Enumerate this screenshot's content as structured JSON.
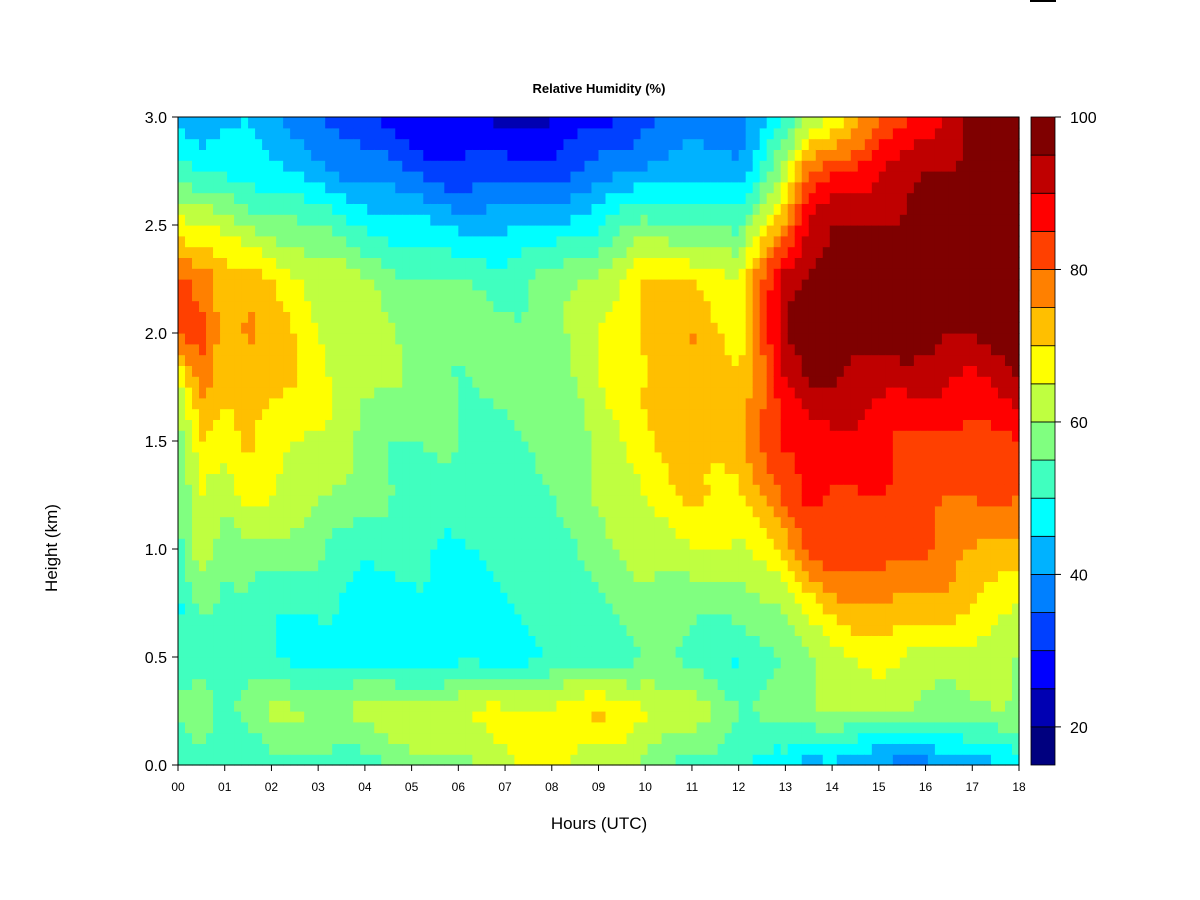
{
  "chart_data": {
    "type": "heatmap",
    "title": "Relative Humidity (%)",
    "xlabel": "Hours (UTC)",
    "ylabel": "Height (km)",
    "xlim": [
      0,
      18
    ],
    "ylim": [
      0.0,
      3.0
    ],
    "x_ticks": [
      "00",
      "01",
      "02",
      "03",
      "04",
      "05",
      "06",
      "07",
      "08",
      "09",
      "10",
      "11",
      "12",
      "13",
      "14",
      "15",
      "16",
      "17",
      "18"
    ],
    "y_ticks": [
      "0.0",
      "0.5",
      "1.0",
      "1.5",
      "2.0",
      "2.5",
      "3.0"
    ],
    "colorbar": {
      "range": [
        15,
        100
      ],
      "step": 5,
      "ticks": [
        "20",
        "40",
        "60",
        "80",
        "100"
      ],
      "colors": [
        "#00007f",
        "#0000b2",
        "#0000ff",
        "#0040ff",
        "#0080ff",
        "#00b2ff",
        "#00ffff",
        "#40ffbf",
        "#80ff80",
        "#bfff40",
        "#ffff00",
        "#ffbf00",
        "#ff8000",
        "#ff4000",
        "#ff0000",
        "#bf0000",
        "#7f0000"
      ]
    },
    "hour_columns": [
      0,
      0.5,
      1,
      1.5,
      2,
      3,
      4,
      5,
      6,
      7,
      8,
      9,
      10,
      11,
      12,
      13,
      13.5,
      14,
      15,
      16,
      17,
      18
    ],
    "height_rows": [
      0.0,
      0.25,
      0.5,
      0.75,
      1.0,
      1.25,
      1.5,
      1.75,
      2.0,
      2.25,
      2.5,
      2.75,
      3.0
    ],
    "values": [
      [
        50,
        55,
        52,
        50,
        52,
        55,
        58,
        62,
        80,
        82,
        68,
        52,
        42
      ],
      [
        52,
        58,
        54,
        56,
        62,
        66,
        70,
        76,
        82,
        80,
        64,
        48,
        42
      ],
      [
        50,
        55,
        52,
        52,
        58,
        63,
        66,
        70,
        74,
        72,
        62,
        50,
        45
      ],
      [
        52,
        58,
        52,
        54,
        60,
        66,
        70,
        74,
        76,
        72,
        60,
        48,
        44
      ],
      [
        54,
        60,
        50,
        52,
        58,
        64,
        68,
        72,
        73,
        70,
        58,
        45,
        40
      ],
      [
        52,
        60,
        48,
        50,
        56,
        62,
        64,
        66,
        66,
        64,
        54,
        42,
        36
      ],
      [
        54,
        62,
        47,
        48,
        52,
        56,
        58,
        62,
        62,
        60,
        50,
        38,
        30
      ],
      [
        57,
        64,
        46,
        48,
        51,
        54,
        55,
        58,
        58,
        56,
        46,
        34,
        26
      ],
      [
        60,
        65,
        47,
        48,
        50,
        53,
        54,
        56,
        56,
        54,
        44,
        32,
        24
      ],
      [
        63,
        66,
        48,
        50,
        51,
        53,
        54,
        56,
        56,
        54,
        44,
        32,
        24
      ],
      [
        68,
        67,
        50,
        52,
        53,
        55,
        56,
        58,
        58,
        56,
        46,
        33,
        24
      ],
      [
        62,
        70,
        53,
        55,
        57,
        60,
        62,
        64,
        64,
        62,
        50,
        36,
        28
      ],
      [
        58,
        67,
        55,
        58,
        62,
        66,
        68,
        70,
        72,
        70,
        56,
        42,
        34
      ],
      [
        54,
        62,
        53,
        58,
        64,
        70,
        72,
        74,
        74,
        70,
        56,
        42,
        36
      ],
      [
        50,
        56,
        50,
        56,
        64,
        70,
        72,
        70,
        68,
        66,
        52,
        42,
        38
      ],
      [
        48,
        58,
        54,
        62,
        72,
        80,
        86,
        90,
        94,
        92,
        78,
        62,
        48
      ],
      [
        42,
        58,
        60,
        68,
        80,
        86,
        88,
        94,
        98,
        97,
        92,
        78,
        60
      ],
      [
        42,
        62,
        64,
        72,
        84,
        86,
        88,
        94,
        98,
        98,
        94,
        84,
        66
      ],
      [
        40,
        60,
        66,
        76,
        84,
        84,
        86,
        92,
        98,
        98,
        96,
        90,
        78
      ],
      [
        36,
        58,
        64,
        74,
        80,
        82,
        84,
        90,
        97,
        98,
        97,
        94,
        88
      ],
      [
        44,
        60,
        62,
        70,
        76,
        80,
        82,
        88,
        96,
        98,
        98,
        98,
        96
      ],
      [
        46,
        58,
        60,
        66,
        72,
        80,
        86,
        94,
        98,
        98,
        98,
        98,
        98
      ]
    ]
  }
}
